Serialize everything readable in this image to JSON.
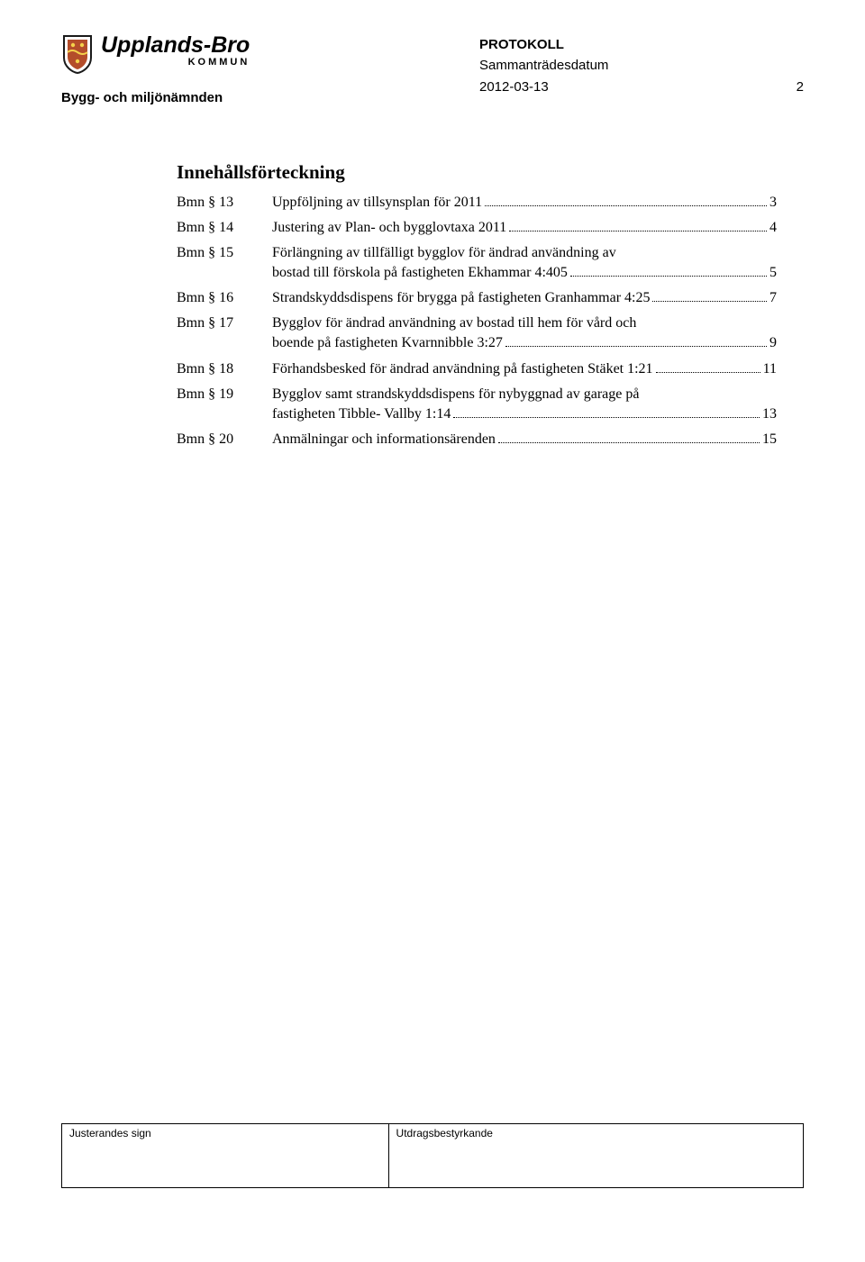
{
  "header": {
    "logo_top": "Upplands-Bro",
    "logo_bottom": "KOMMUN",
    "department": "Bygg- och miljönämnden",
    "protocol_label": "PROTOKOLL",
    "meeting_date_label": "Sammanträdesdatum",
    "meeting_date": "2012-03-13",
    "page_number": "2",
    "shield_color_outer": "#1a1a1a",
    "shield_color_inner": "#b44d2a"
  },
  "toc": {
    "title": "Innehållsförteckning",
    "entries": [
      {
        "label": "Bmn § 13",
        "lines": [
          "Uppföljning av tillsynsplan för 2011"
        ],
        "page": "3"
      },
      {
        "label": "Bmn § 14",
        "lines": [
          "Justering av Plan- och bygglovtaxa 2011"
        ],
        "page": "4"
      },
      {
        "label": "Bmn § 15",
        "lines": [
          "Förlängning av tillfälligt bygglov för ändrad användning av",
          "bostad till förskola på fastigheten Ekhammar 4:405"
        ],
        "page": "5"
      },
      {
        "label": "Bmn § 16",
        "lines": [
          "Strandskyddsdispens för brygga på fastigheten Granhammar 4:25"
        ],
        "page": "7"
      },
      {
        "label": "Bmn § 17",
        "lines": [
          "Bygglov för ändrad användning av bostad till hem för vård och",
          "boende på fastigheten Kvarnnibble 3:27"
        ],
        "page": "9"
      },
      {
        "label": "Bmn § 18",
        "lines": [
          "Förhandsbesked för ändrad användning på fastigheten Stäket 1:21"
        ],
        "page": "11"
      },
      {
        "label": "Bmn § 19",
        "lines": [
          "Bygglov samt strandskyddsdispens för nybyggnad av garage på",
          "fastigheten Tibble- Vallby 1:14"
        ],
        "page": "13"
      },
      {
        "label": "Bmn § 20",
        "lines": [
          "Anmälningar och informationsärenden"
        ],
        "page": "15"
      }
    ]
  },
  "footer": {
    "left_label": "Justerandes sign",
    "right_label": "Utdragsbestyrkande"
  }
}
